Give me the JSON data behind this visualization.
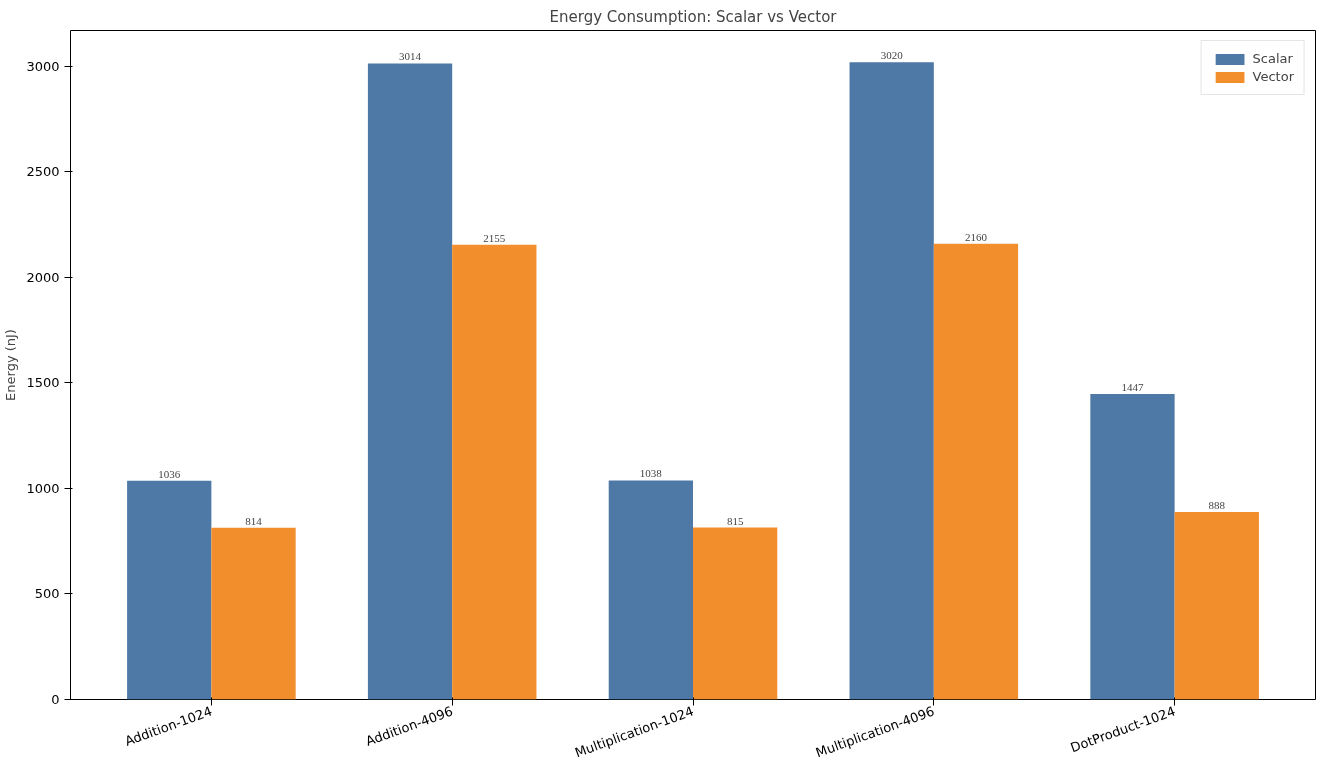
{
  "chart_data": {
    "type": "bar",
    "title": "Energy Consumption: Scalar vs Vector",
    "ylabel": "Energy (nJ)",
    "categories": [
      "Addition-1024",
      "Addition-4096",
      "Multiplication-1024",
      "Multiplication-4096",
      "DotProduct-1024"
    ],
    "series": [
      {
        "name": "Scalar",
        "color": "#4e79a7",
        "values": [
          1036,
          3014,
          1038,
          3020,
          1447
        ]
      },
      {
        "name": "Vector",
        "color": "#f28e2b",
        "values": [
          814,
          2155,
          815,
          2160,
          888
        ]
      }
    ],
    "ylim": [
      0,
      3170
    ],
    "yticks": [
      0,
      500,
      1000,
      1500,
      2000,
      2500,
      3000
    ],
    "data_labels": true,
    "legend": "top right",
    "grid": false
  }
}
